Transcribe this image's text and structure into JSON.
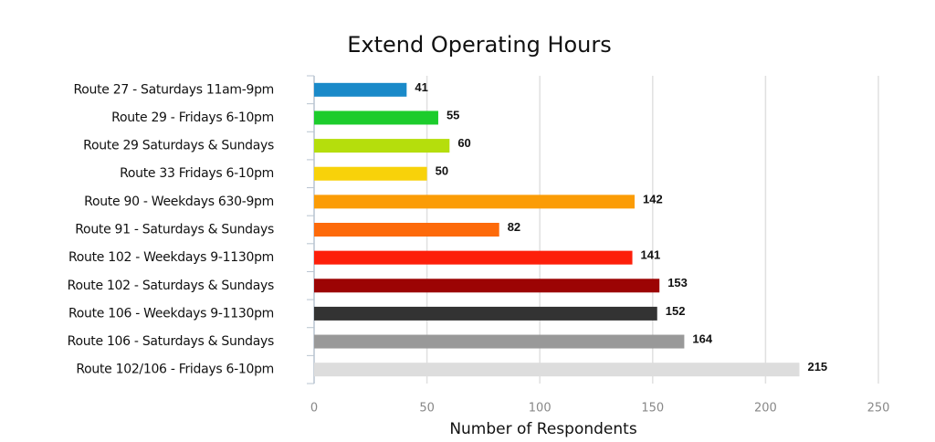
{
  "chart_data": {
    "type": "bar",
    "orientation": "horizontal",
    "title": "Extend Operating Hours",
    "xlabel": "Number of Respondents",
    "categories": [
      "Route 27 - Saturdays 11am-9pm",
      "Route 29 - Fridays 6-10pm",
      "Route 29 Saturdays & Sundays",
      "Route 33 Fridays 6-10pm",
      "Route 90 - Weekdays 630-9pm",
      "Route 91 - Saturdays & Sundays",
      "Route 102 - Weekdays 9-1130pm",
      "Route 102 - Saturdays & Sundays",
      "Route 106 - Weekdays 9-1130pm",
      "Route 106 - Saturdays & Sundays",
      "Route 102/106 - Fridays 6-10pm"
    ],
    "values": [
      41,
      55,
      60,
      50,
      142,
      82,
      141,
      153,
      152,
      164,
      215
    ],
    "colors": [
      "#1a8ac9",
      "#1ccc2c",
      "#b5de0c",
      "#f8d20a",
      "#fb9c06",
      "#fd6a0a",
      "#fd1f0a",
      "#9c0404",
      "#333333",
      "#999999",
      "#dddddd"
    ],
    "xlim": [
      0,
      250
    ],
    "xticks": [
      0,
      50,
      100,
      150,
      200,
      250
    ],
    "grid": true
  }
}
